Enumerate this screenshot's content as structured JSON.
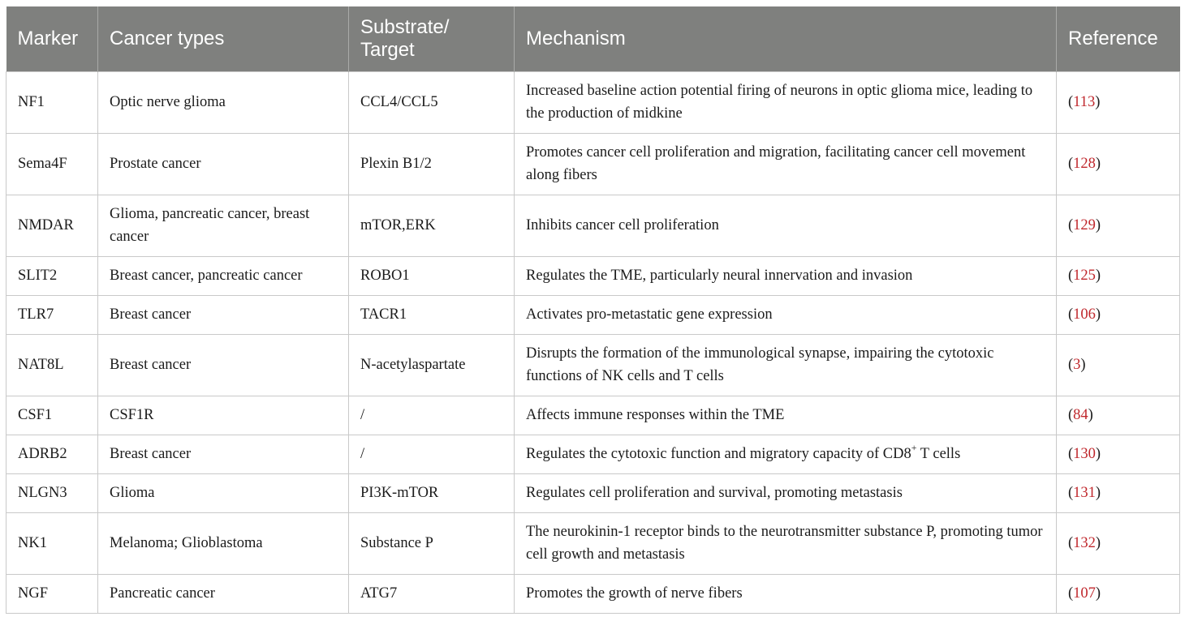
{
  "table": {
    "headers": [
      "Marker",
      "Cancer types",
      "Substrate/\nTarget",
      "Mechanism",
      "Reference"
    ],
    "rows": [
      {
        "marker": "NF1",
        "cancer": "Optic nerve glioma",
        "target": "CCL4/CCL5",
        "mechanism": "Increased baseline action potential firing of neurons in optic glioma mice, leading to the production of midkine",
        "ref": "113"
      },
      {
        "marker": "Sema4F",
        "cancer": "Prostate cancer",
        "target": "Plexin B1/2",
        "mechanism": "Promotes cancer cell proliferation and migration, facilitating cancer cell movement along fibers",
        "ref": "128"
      },
      {
        "marker": "NMDAR",
        "cancer": "Glioma, pancreatic cancer, breast cancer",
        "target": "mTOR,ERK",
        "mechanism": "Inhibits cancer cell proliferation",
        "ref": "129"
      },
      {
        "marker": "SLIT2",
        "cancer": "Breast cancer, pancreatic cancer",
        "target": "ROBO1",
        "mechanism": "Regulates the TME, particularly neural innervation and invasion",
        "ref": "125"
      },
      {
        "marker": "TLR7",
        "cancer": "Breast cancer",
        "target": "TACR1",
        "mechanism": "Activates pro-metastatic gene expression",
        "ref": "106"
      },
      {
        "marker": "NAT8L",
        "cancer": "Breast cancer",
        "target": "N-acetylaspartate",
        "mechanism": "Disrupts the formation of the immunological synapse, impairing the cytotoxic functions of NK cells and T cells",
        "ref": "3"
      },
      {
        "marker": "CSF1",
        "cancer": "CSF1R",
        "target": "/",
        "mechanism": "Affects immune responses within the TME",
        "ref": "84"
      },
      {
        "marker": "ADRB2",
        "cancer": "Breast cancer",
        "target": "/",
        "mechanism_pre": "Regulates the cytotoxic function and migratory capacity of CD8",
        "mechanism_sup": "+",
        "mechanism_post": " T cells",
        "ref": "130"
      },
      {
        "marker": "NLGN3",
        "cancer": "Glioma",
        "target": "PI3K-mTOR",
        "mechanism": "Regulates cell proliferation and survival, promoting metastasis",
        "ref": "131"
      },
      {
        "marker": "NK1",
        "cancer": "Melanoma; Glioblastoma",
        "target": "Substance P",
        "mechanism": "The neurokinin-1 receptor binds to the neurotransmitter substance P, promoting tumor cell growth and metastasis",
        "ref": "132"
      },
      {
        "marker": "NGF",
        "cancer": "Pancreatic cancer",
        "target": "ATG7",
        "mechanism": "Promotes the growth of nerve fibers",
        "ref": "107"
      }
    ]
  },
  "colors": {
    "header_bg": "#7f807e",
    "header_text": "#ffffff",
    "reference_number": "#c0282d",
    "border": "#c9c9c9"
  }
}
